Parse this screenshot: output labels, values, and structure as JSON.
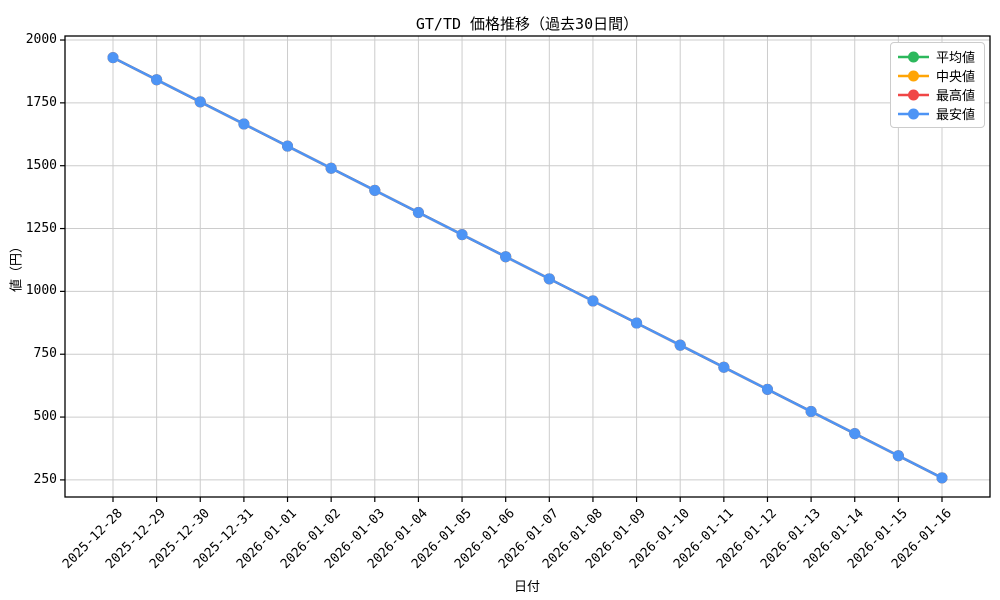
{
  "title": "GT/TD 価格推移（過去30日間）",
  "chart_data": {
    "type": "line",
    "title": "GT/TD 価格推移（過去30日間）",
    "xlabel": "日付",
    "ylabel": "値（円）",
    "x": [
      "2025-12-28",
      "2025-12-29",
      "2025-12-30",
      "2025-12-31",
      "2026-01-01",
      "2026-01-02",
      "2026-01-03",
      "2026-01-04",
      "2026-01-05",
      "2026-01-06",
      "2026-01-07",
      "2026-01-08",
      "2026-01-09",
      "2026-01-10",
      "2026-01-11",
      "2026-01-12",
      "2026-01-13",
      "2026-01-14",
      "2026-01-15",
      "2026-01-16"
    ],
    "series": [
      {
        "name": "平均値",
        "color": "#2CB85C",
        "values": [
          1930,
          1842,
          1754,
          1666,
          1578,
          1490,
          1402,
          1314,
          1226,
          1138,
          1050,
          962,
          874,
          786,
          698,
          610,
          522,
          434,
          346,
          258
        ]
      },
      {
        "name": "中央値",
        "color": "#FFA506",
        "values": [
          1930,
          1842,
          1754,
          1666,
          1578,
          1490,
          1402,
          1314,
          1226,
          1138,
          1050,
          962,
          874,
          786,
          698,
          610,
          522,
          434,
          346,
          258
        ]
      },
      {
        "name": "最高値",
        "color": "#F04646",
        "values": [
          1930,
          1842,
          1754,
          1666,
          1578,
          1490,
          1402,
          1314,
          1226,
          1138,
          1050,
          962,
          874,
          786,
          698,
          610,
          522,
          434,
          346,
          258
        ]
      },
      {
        "name": "最安値",
        "color": "#4D94F5",
        "values": [
          1930,
          1842,
          1754,
          1666,
          1578,
          1490,
          1402,
          1314,
          1226,
          1138,
          1050,
          962,
          874,
          786,
          698,
          610,
          522,
          434,
          346,
          258
        ]
      }
    ],
    "yticks": [
      250,
      500,
      750,
      1000,
      1250,
      1500,
      1750,
      2000
    ],
    "ylim": [
      182,
      2016
    ],
    "grid": true,
    "grid_color": "#cccccc",
    "spine_color": "#000000",
    "legend_position": "upper right",
    "note_visible_series": "最安値 line drawn on top; other series overlap identically"
  }
}
